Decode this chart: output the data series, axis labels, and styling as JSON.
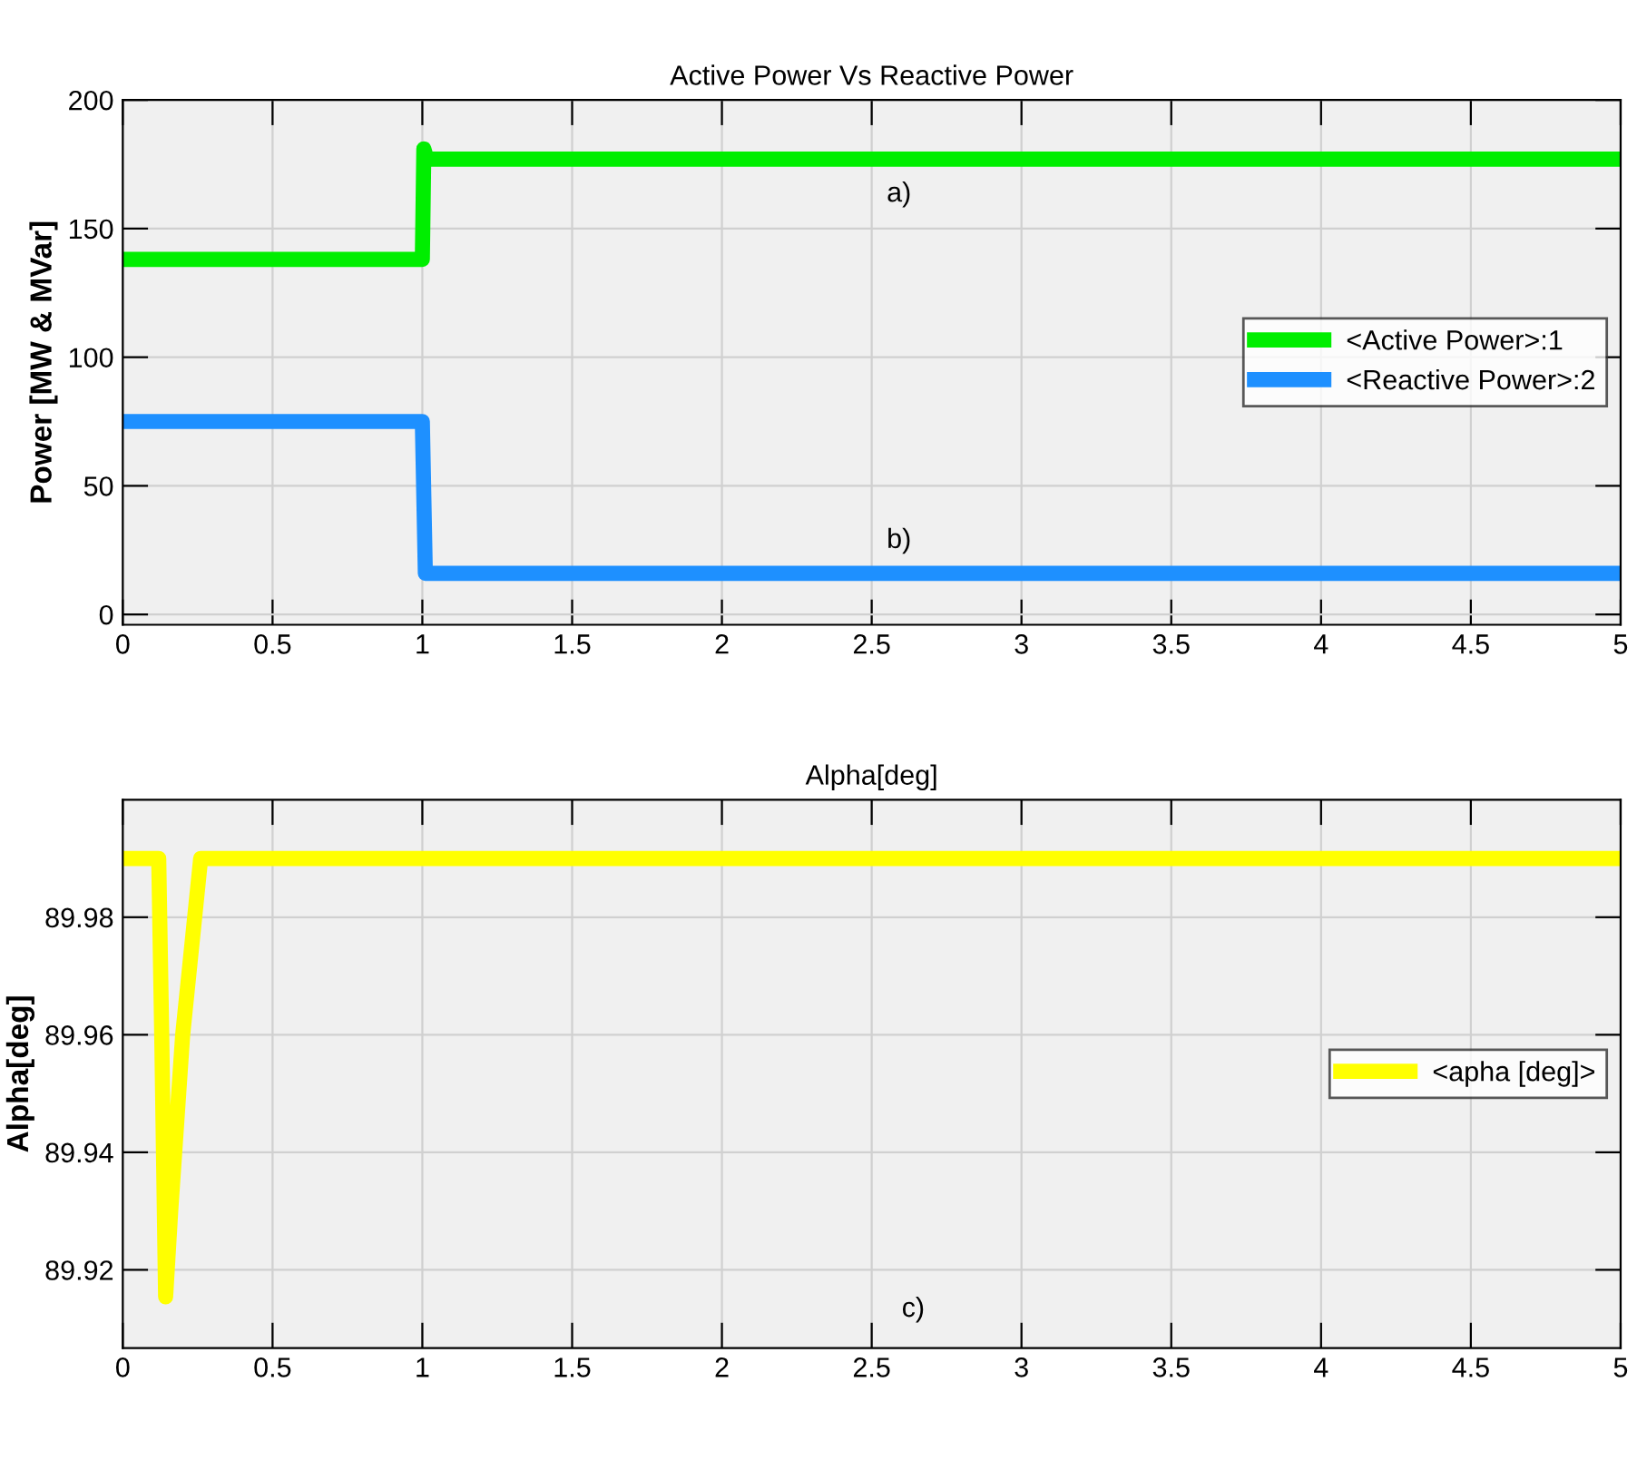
{
  "chart_data": [
    {
      "type": "line",
      "title": "Active Power Vs Reactive Power",
      "ylabel": "Power [MW & MVar]",
      "series": [
        {
          "name": "<Active Power>:1",
          "color": "#00ee00",
          "x": [
            0,
            1.0,
            1.005,
            1.015,
            5
          ],
          "values": [
            138,
            138,
            181,
            177,
            177
          ]
        },
        {
          "name": "<Reactive Power>:2",
          "color": "#1e90ff",
          "x": [
            0,
            1.0,
            1.01,
            5
          ],
          "values": [
            75,
            75,
            16,
            16
          ]
        }
      ],
      "xlim": [
        0,
        5
      ],
      "xticks": [
        0,
        0.5,
        1,
        1.5,
        2,
        2.5,
        3,
        3.5,
        4,
        4.5,
        5
      ],
      "ylim": [
        -4,
        200
      ],
      "yticks": [
        0,
        50,
        100,
        150,
        200
      ],
      "grid": true,
      "legend": "right",
      "marker": "none",
      "line_style": "solid",
      "annotations": [
        "a)",
        "b)"
      ]
    },
    {
      "type": "line",
      "title": "Alpha[deg]",
      "ylabel": "Alpha[deg]",
      "series": [
        {
          "name": "<apha [deg]>",
          "color": "#ffff00",
          "x": [
            0,
            0.12,
            0.13,
            0.143,
            0.16,
            0.2,
            0.26,
            5
          ],
          "values": [
            89.99,
            89.99,
            89.96,
            89.9154,
            89.93,
            89.96,
            89.99,
            89.99
          ]
        }
      ],
      "xlim": [
        0,
        5
      ],
      "xticks": [
        0,
        0.5,
        1,
        1.5,
        2,
        2.5,
        3,
        3.5,
        4,
        4.5,
        5
      ],
      "ylim": [
        89.9067,
        90.0
      ],
      "yticks": [
        89.92,
        89.94,
        89.96,
        89.98
      ],
      "grid": true,
      "legend": "right",
      "marker": "none",
      "line_style": "solid",
      "annotations": [
        "c)"
      ]
    }
  ]
}
